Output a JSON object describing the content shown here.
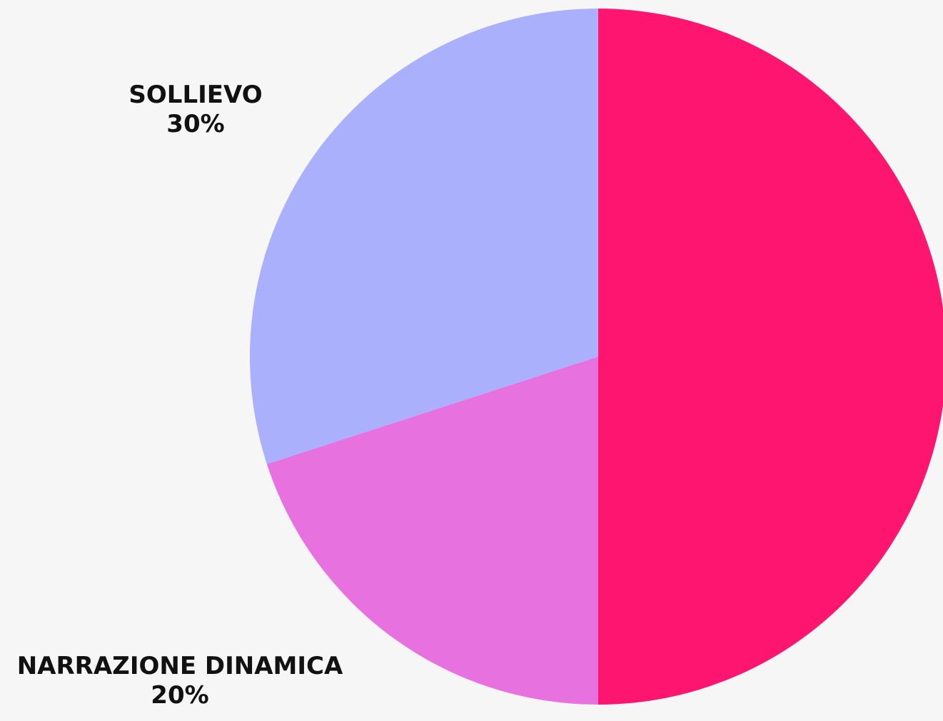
{
  "chart_data": {
    "type": "pie",
    "title": "",
    "slices": [
      {
        "name": "",
        "value": 50,
        "color": "#fd1570"
      },
      {
        "name": "NARRAZIONE DINAMICA",
        "value": 20,
        "value_label": "20%",
        "color": "#e771de"
      },
      {
        "name": "SOLLIEVO",
        "value": 30,
        "value_label": "30%",
        "color": "#aab0fc"
      }
    ],
    "start_angle_deg": 0,
    "direction": "clockwise",
    "legend": "none"
  }
}
